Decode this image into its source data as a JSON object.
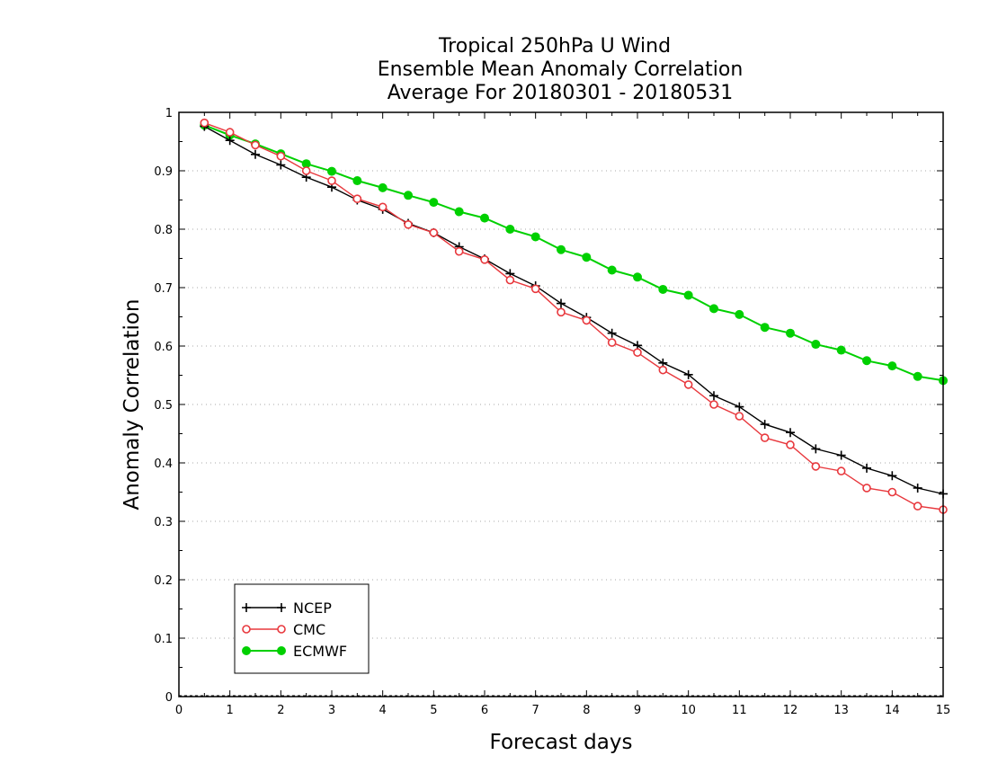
{
  "chart_data": {
    "type": "line",
    "title": [
      "Tropical 250hPa U Wind",
      "Ensemble Mean Anomaly Correlation",
      "Average For 20180301 - 20180531"
    ],
    "xlabel": "Forecast days",
    "ylabel": "Anomaly Correlation",
    "xlim": [
      0,
      15
    ],
    "ylim": [
      0,
      1
    ],
    "xticks": [
      "0",
      "1",
      "2",
      "3",
      "4",
      "5",
      "6",
      "7",
      "8",
      "9",
      "10",
      "11",
      "12",
      "13",
      "14",
      "15"
    ],
    "yticks": [
      "0",
      "0.1",
      "0.2",
      "0.3",
      "0.4",
      "0.5",
      "0.6",
      "0.7",
      "0.8",
      "0.9",
      "1"
    ],
    "grid": true,
    "legend_position": "bottom-left",
    "x": [
      0.5,
      1,
      1.5,
      2,
      2.5,
      3,
      3.5,
      4,
      4.5,
      5,
      5.5,
      6,
      6.5,
      7,
      7.5,
      8,
      8.5,
      9,
      9.5,
      10,
      10.5,
      11,
      11.5,
      12,
      12.5,
      13,
      13.5,
      14,
      14.5,
      15
    ],
    "series": [
      {
        "name": "NCEP",
        "color": "#000000",
        "marker": "plus",
        "values": [
          0.976,
          0.952,
          0.928,
          0.91,
          0.889,
          0.872,
          0.85,
          0.834,
          0.81,
          0.794,
          0.77,
          0.749,
          0.724,
          0.703,
          0.673,
          0.649,
          0.622,
          0.601,
          0.571,
          0.551,
          0.515,
          0.496,
          0.466,
          0.452,
          0.424,
          0.413,
          0.391,
          0.378,
          0.357,
          0.347
        ]
      },
      {
        "name": "CMC",
        "color": "#e8383d",
        "marker": "open-circle",
        "values": [
          0.982,
          0.966,
          0.944,
          0.925,
          0.9,
          0.883,
          0.852,
          0.838,
          0.808,
          0.794,
          0.762,
          0.748,
          0.713,
          0.698,
          0.658,
          0.644,
          0.606,
          0.589,
          0.559,
          0.534,
          0.5,
          0.48,
          0.443,
          0.431,
          0.394,
          0.386,
          0.357,
          0.35,
          0.326,
          0.32
        ]
      },
      {
        "name": "ECMWF",
        "color": "#00d000",
        "marker": "filled-circle",
        "values": [
          0.978,
          0.961,
          0.946,
          0.929,
          0.912,
          0.899,
          0.883,
          0.871,
          0.858,
          0.846,
          0.83,
          0.819,
          0.8,
          0.787,
          0.765,
          0.752,
          0.73,
          0.718,
          0.697,
          0.687,
          0.664,
          0.654,
          0.632,
          0.622,
          0.603,
          0.593,
          0.575,
          0.566,
          0.548,
          0.541
        ]
      }
    ]
  }
}
